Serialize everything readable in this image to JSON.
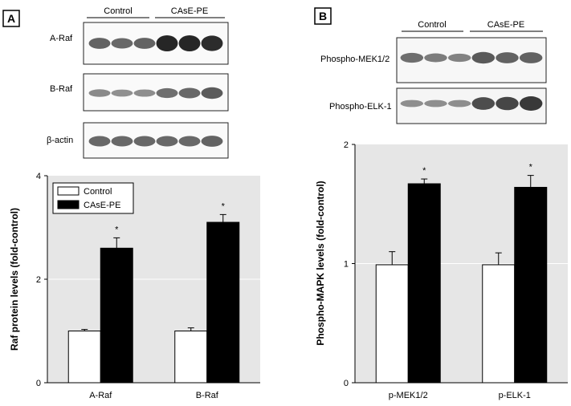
{
  "colors": {
    "control": "#ffffff",
    "treatment": "#000000",
    "plot_background": "#e6e6e6",
    "blot_background": "#ffffff",
    "band": "#1a1a1a",
    "grid": "#ffffff"
  },
  "panel_a": {
    "letter": "A",
    "blot_groups": [
      "Control",
      "CAsE-PE"
    ],
    "blot_rows": [
      {
        "label": "A-Raf",
        "intensity": [
          0.55,
          0.5,
          0.55,
          1.0,
          1.0,
          0.95
        ]
      },
      {
        "label": "B-Raf",
        "intensity": [
          0.25,
          0.2,
          0.22,
          0.45,
          0.5,
          0.6
        ]
      },
      {
        "label": "β-actin",
        "intensity": [
          0.5,
          0.5,
          0.5,
          0.5,
          0.5,
          0.55
        ]
      }
    ]
  },
  "panel_b": {
    "letter": "B",
    "blot_groups": [
      "Control",
      "CAsE-PE"
    ],
    "blot_rows": [
      {
        "label": "Phospho-MEK1/2",
        "intensity": [
          0.45,
          0.35,
          0.3,
          0.6,
          0.55,
          0.55
        ]
      },
      {
        "label": "Phospho-ELK-1",
        "intensity": [
          0.2,
          0.2,
          0.2,
          0.7,
          0.75,
          0.85
        ]
      }
    ]
  },
  "chart_data": [
    {
      "type": "bar",
      "panel": "A",
      "categories": [
        "A-Raf",
        "B-Raf"
      ],
      "series": [
        {
          "name": "Control",
          "values": [
            1.0,
            1.0
          ],
          "errors": [
            0.03,
            0.06
          ]
        },
        {
          "name": "CAsE-PE",
          "values": [
            2.6,
            3.1
          ],
          "errors": [
            0.2,
            0.15
          ]
        }
      ],
      "significance": [
        "*",
        "*"
      ],
      "ylabel": "Raf protein levels (fold-control)",
      "ylim": [
        0,
        4
      ],
      "yticks": [
        "0",
        "2",
        "4"
      ],
      "grid": true,
      "legend": "top-left"
    },
    {
      "type": "bar",
      "panel": "B",
      "categories": [
        "p-MEK1/2",
        "p-ELK-1"
      ],
      "series": [
        {
          "name": "Control",
          "values": [
            0.99,
            0.99
          ],
          "errors": [
            0.11,
            0.1
          ]
        },
        {
          "name": "CAsE-PE",
          "values": [
            1.67,
            1.64
          ],
          "errors": [
            0.04,
            0.1
          ]
        }
      ],
      "significance": [
        "*",
        "*"
      ],
      "ylabel": "Phospho-MAPK levels (fold-control)",
      "ylim": [
        0,
        2
      ],
      "yticks": [
        "0",
        "1",
        "2"
      ],
      "grid": true,
      "legend": "none"
    }
  ]
}
